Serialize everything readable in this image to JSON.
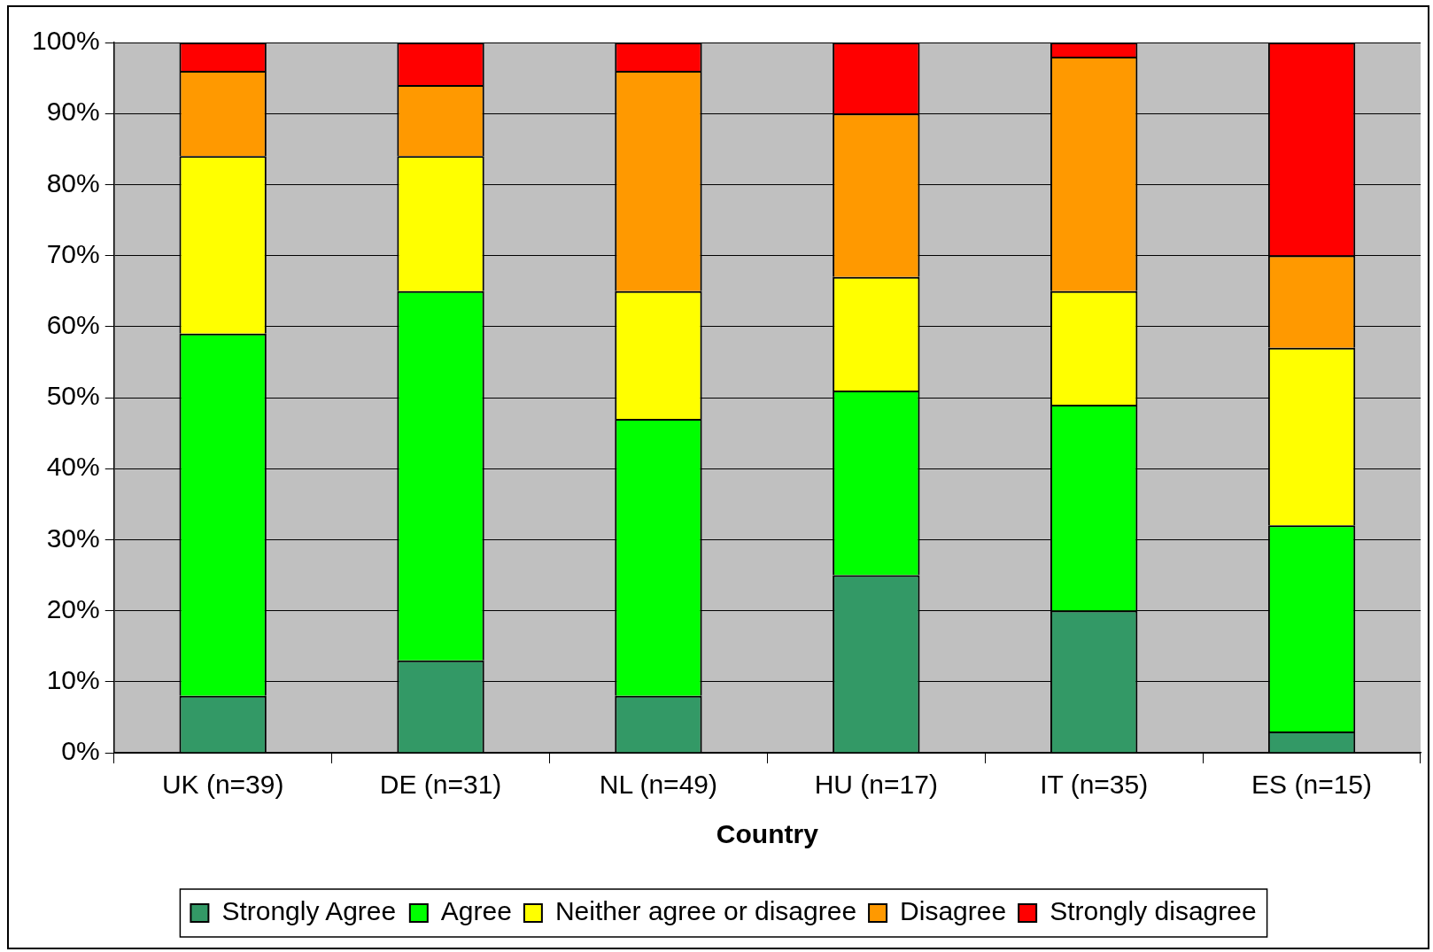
{
  "chart_data": {
    "type": "bar",
    "stacked": true,
    "xlabel": "Country",
    "categories": [
      "UK (n=39)",
      "DE (n=31)",
      "NL (n=49)",
      "HU (n=17)",
      "IT (n=35)",
      "ES (n=15)"
    ],
    "series": [
      {
        "name": "Strongly Agree",
        "color": "#339966",
        "values": [
          8,
          13,
          8,
          25,
          20,
          3
        ]
      },
      {
        "name": "Agree",
        "color": "#00ff00",
        "values": [
          51,
          52,
          39,
          26,
          29,
          29
        ]
      },
      {
        "name": "Neither agree or disagree",
        "color": "#ffff00",
        "values": [
          25,
          19,
          18,
          16,
          16,
          25
        ]
      },
      {
        "name": "Disagree",
        "color": "#ff9900",
        "values": [
          12,
          10,
          31,
          23,
          33,
          13
        ]
      },
      {
        "name": "Strongly disagree",
        "color": "#ff0000",
        "values": [
          4,
          6,
          4,
          10,
          2,
          30
        ]
      }
    ],
    "ylim": [
      0,
      100
    ],
    "yticks": [
      {
        "value": 0,
        "label": "0%"
      },
      {
        "value": 10,
        "label": "10%"
      },
      {
        "value": 20,
        "label": "20%"
      },
      {
        "value": 30,
        "label": "30%"
      },
      {
        "value": 40,
        "label": "40%"
      },
      {
        "value": 50,
        "label": "50%"
      },
      {
        "value": 60,
        "label": "60%"
      },
      {
        "value": 70,
        "label": "70%"
      },
      {
        "value": 80,
        "label": "80%"
      },
      {
        "value": 90,
        "label": "90%"
      },
      {
        "value": 100,
        "label": "100%"
      }
    ],
    "grid": "y",
    "legend": "bottom"
  }
}
